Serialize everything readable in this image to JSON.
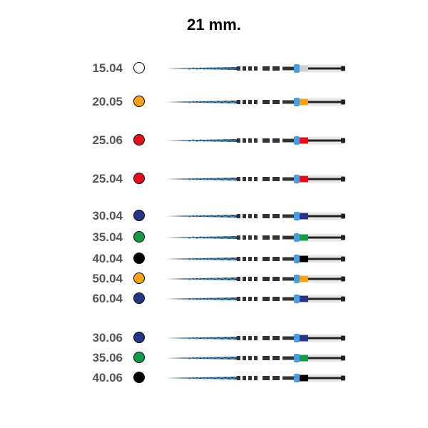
{
  "title": "21 mm.",
  "files": [
    {
      "size": "15.04",
      "color": "#ffffff"
    },
    {
      "size": "20.05",
      "color": "#f5a01a"
    },
    {
      "size": "25.06",
      "color": "#e3101b"
    },
    {
      "size": "25.04",
      "color": "#e3101b"
    },
    {
      "size": "30.04",
      "color": "#263687"
    },
    {
      "size": "35.04",
      "color": "#169a4a"
    },
    {
      "size": "40.04",
      "color": "#000000"
    },
    {
      "size": "50.04",
      "color": "#f5a01a"
    },
    {
      "size": "60.04",
      "color": "#263687"
    },
    {
      "size": "30.06",
      "color": "#263687"
    },
    {
      "size": "35.06",
      "color": "#169a4a"
    },
    {
      "size": "40.06",
      "color": "#000000"
    }
  ]
}
